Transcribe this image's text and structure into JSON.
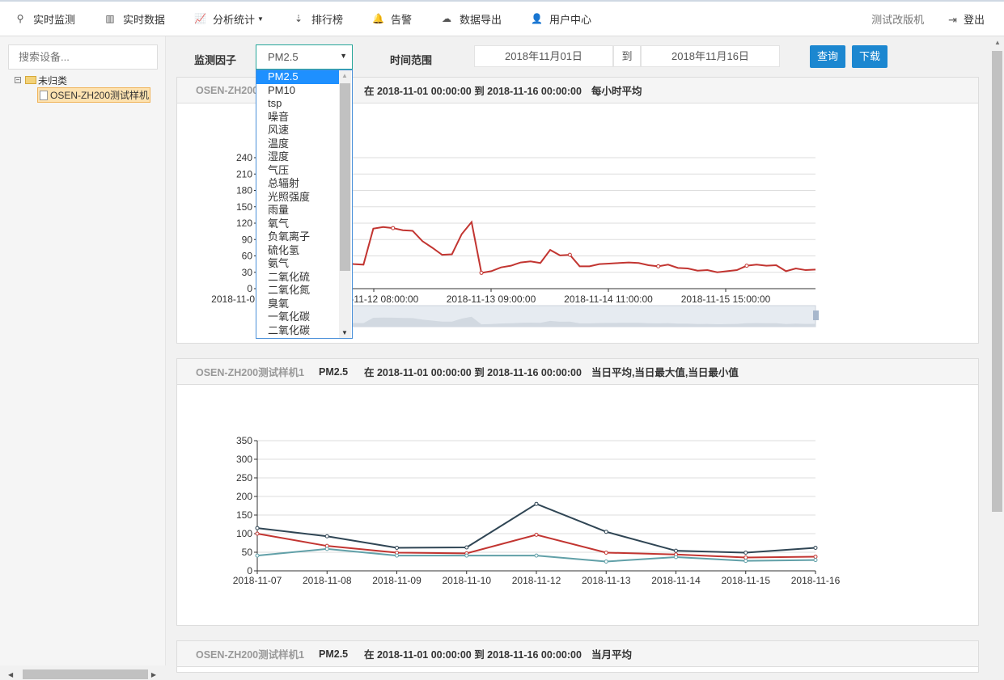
{
  "nav": {
    "items": [
      {
        "label": "实时监测",
        "icon": "map-marker-icon"
      },
      {
        "label": "实时数据",
        "icon": "bar-chart-icon"
      },
      {
        "label": "分析统计",
        "icon": "line-chart-icon",
        "dropdown": true
      },
      {
        "label": "排行榜",
        "icon": "sort-icon"
      },
      {
        "label": "告警",
        "icon": "bell-icon"
      },
      {
        "label": "数据导出",
        "icon": "cloud-download-icon"
      },
      {
        "label": "用户中心",
        "icon": "user-icon"
      }
    ],
    "account": "测试改版机",
    "logout": "登出"
  },
  "sidebar": {
    "search_placeholder": "搜索设备...",
    "tree": {
      "folder": "未归类",
      "device": "OSEN-ZH200测试样机1"
    }
  },
  "filter": {
    "factor_label": "监测因子",
    "factor_value": "PM2.5",
    "range_label": "时间范围",
    "start": "2018年11月01日",
    "to": "到",
    "end": "2018年11月16日",
    "query": "查询",
    "download": "下载"
  },
  "dropdown_options": [
    "PM2.5",
    "PM10",
    "tsp",
    "噪音",
    "风速",
    "温度",
    "湿度",
    "气压",
    "总辐射",
    "光照强度",
    "雨量",
    "氧气",
    "负氧离子",
    "硫化氢",
    "氨气",
    "二氧化硫",
    "二氧化氮",
    "臭氧",
    "一氧化碳",
    "二氧化碳"
  ],
  "panels": [
    {
      "device": "OSEN-ZH200",
      "factor": "PM2.5",
      "range": "在 2018-11-01 00:00:00 到 2018-11-16 00:00:00",
      "mode": "每小时平均"
    },
    {
      "device": "OSEN-ZH200测试样机1",
      "factor": "PM2.5",
      "range": "在 2018-11-01 00:00:00 到 2018-11-16 00:00:00",
      "mode": "当日平均,当日最大值,当日最小值"
    },
    {
      "device": "OSEN-ZH200测试样机1",
      "factor": "PM2.5",
      "range": "在 2018-11-01 00:00:00 到 2018-11-16 00:00:00",
      "mode": "当月平均"
    }
  ],
  "colors": {
    "accent": "#1c87d0",
    "red": "#c23531",
    "dark": "#2f4554",
    "teal": "#61a0a8"
  },
  "chart_data": [
    {
      "type": "line",
      "ylim": [
        0,
        240
      ],
      "yticks": [
        0,
        30,
        60,
        90,
        120,
        150,
        180,
        210,
        240
      ],
      "grid": true,
      "xticks": [
        "2018-11-0",
        "2018-11-12 08:00:00",
        "2018-11-13 09:00:00",
        "2018-11-14 11:00:00",
        "2018-11-15 15:00:00"
      ],
      "series": [
        {
          "color": "#c23531",
          "values": [
            48,
            45,
            44,
            110,
            113,
            111,
            107,
            106,
            87,
            75,
            62,
            63,
            100,
            122,
            29,
            32,
            39,
            42,
            48,
            50,
            47,
            71,
            61,
            62,
            41,
            41,
            45,
            46,
            47,
            48,
            47,
            43,
            41,
            44,
            38,
            37,
            33,
            34,
            30,
            32,
            34,
            42,
            44,
            42,
            43,
            32,
            37,
            34,
            35
          ]
        }
      ],
      "datazoom": true
    },
    {
      "type": "line",
      "ylim": [
        0,
        350
      ],
      "yticks": [
        0,
        50,
        100,
        150,
        200,
        250,
        300,
        350
      ],
      "grid": true,
      "categories": [
        "2018-11-07",
        "2018-11-08",
        "2018-11-09",
        "2018-11-10",
        "2018-11-12",
        "2018-11-13",
        "2018-11-14",
        "2018-11-15",
        "2018-11-16"
      ],
      "series": [
        {
          "color": "#2f4554",
          "values": [
            115,
            93,
            62,
            63,
            180,
            105,
            54,
            49,
            62
          ]
        },
        {
          "color": "#c23531",
          "values": [
            100,
            67,
            49,
            47,
            97,
            49,
            44,
            36,
            38
          ]
        },
        {
          "color": "#61a0a8",
          "values": [
            41,
            59,
            41,
            41,
            41,
            25,
            37,
            27,
            29
          ]
        }
      ]
    }
  ]
}
